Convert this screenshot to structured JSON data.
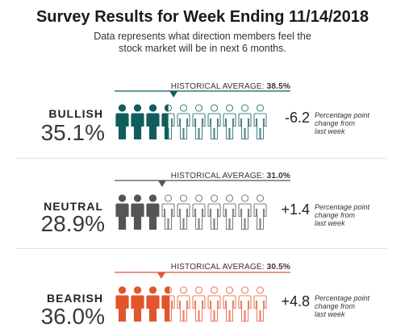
{
  "chart_data": {
    "type": "pictogram",
    "title": "Survey Results for Week Ending 11/14/2018",
    "subtitle_line1": "Data represents what direction members feel the",
    "subtitle_line2": "stock market will be in next 6 months.",
    "icons_per_row": 10,
    "series": [
      {
        "name": "BULLISH",
        "value_label": "35.1%",
        "value": 35.1,
        "historical_label": "HISTORICAL AVERAGE:",
        "historical_value_label": "38.5%",
        "historical_average": 38.5,
        "change_label": "-6.2",
        "change": -6.2,
        "change_note_line1": "Percentage point",
        "change_note_line2": "change from",
        "change_note_line3": "last week",
        "color": "#0f5e5c"
      },
      {
        "name": "NEUTRAL",
        "value_label": "28.9%",
        "value": 28.9,
        "historical_label": "HISTORICAL AVERAGE:",
        "historical_value_label": "31.0%",
        "historical_average": 31.0,
        "change_label": "+1.4",
        "change": 1.4,
        "change_note_line1": "Percentage point",
        "change_note_line2": "change from",
        "change_note_line3": "last week",
        "color": "#555555"
      },
      {
        "name": "BEARISH",
        "value_label": "36.0%",
        "value": 36.0,
        "historical_label": "HISTORICAL AVERAGE:",
        "historical_value_label": "30.5%",
        "historical_average": 30.5,
        "change_label": "+4.8",
        "change": 4.8,
        "change_note_line1": "Percentage point",
        "change_note_line2": "change from",
        "change_note_line3": "last week",
        "color": "#e2552d"
      }
    ]
  }
}
